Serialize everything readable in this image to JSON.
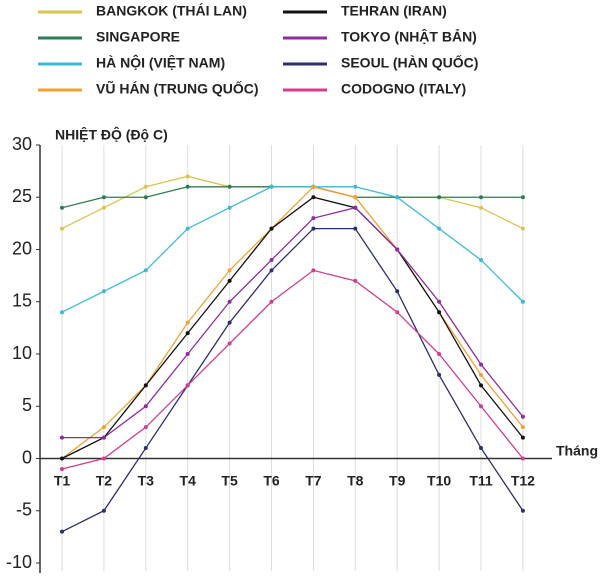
{
  "chart_data": {
    "type": "line",
    "y_label": "NHIỆT ĐỘ (Độ C)",
    "x_label": "Tháng",
    "categories": [
      "T1",
      "T2",
      "T3",
      "T4",
      "T5",
      "T6",
      "T7",
      "T8",
      "T9",
      "T10",
      "T11",
      "T12"
    ],
    "ylim": [
      -10,
      30
    ],
    "yticks": [
      -10,
      -5,
      0,
      5,
      10,
      15,
      20,
      25,
      30
    ],
    "series": [
      {
        "name": "BANGKOK (THÁI LAN)",
        "color": "#d9c54f",
        "values": [
          22,
          24,
          26,
          27,
          26,
          26,
          26,
          25,
          25,
          25,
          24,
          22
        ]
      },
      {
        "name": "SINGAPORE",
        "color": "#2e7d52",
        "values": [
          24,
          25,
          25,
          26,
          26,
          26,
          26,
          25,
          25,
          25,
          25,
          25
        ]
      },
      {
        "name": "HÀ NỘI (VIỆT NAM)",
        "color": "#3cb9d6",
        "values": [
          14,
          16,
          18,
          22,
          24,
          26,
          26,
          26,
          25,
          22,
          19,
          15
        ]
      },
      {
        "name": "VŨ HÁN (TRUNG QUỐC)",
        "color": "#f0a232",
        "values": [
          0,
          3,
          7,
          13,
          18,
          22,
          26,
          25,
          20,
          14,
          8,
          3
        ]
      },
      {
        "name": "TEHRAN (IRAN)",
        "color": "#111111",
        "values": [
          0,
          2,
          7,
          12,
          17,
          22,
          25,
          24,
          20,
          14,
          7,
          2
        ]
      },
      {
        "name": "TOKYO (NHẬT BẢN)",
        "color": "#8e2d9c",
        "values": [
          2,
          2,
          5,
          10,
          15,
          19,
          23,
          24,
          20,
          15,
          9,
          4
        ]
      },
      {
        "name": "SEOUL (HÀN QUỐC)",
        "color": "#2b2f6c",
        "values": [
          -7,
          -5,
          1,
          7,
          13,
          18,
          22,
          22,
          16,
          8,
          1,
          -5
        ]
      },
      {
        "name": "CODOGNO (ITALY)",
        "color": "#d23d8e",
        "values": [
          -1,
          0,
          3,
          7,
          11,
          15,
          18,
          17,
          14,
          10,
          5,
          0
        ]
      }
    ]
  }
}
